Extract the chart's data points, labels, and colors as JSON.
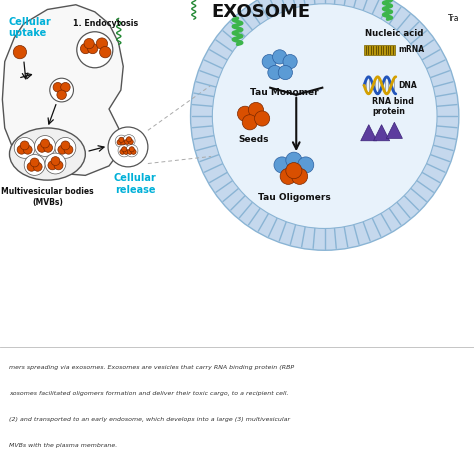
{
  "title": "EXOSOME",
  "background_color": "#ffffff",
  "cell_uptake_label": "Cellular\nuptake",
  "cell_release_label": "Cellular\nrelease",
  "endocytosis_label": "1. Endocytosis",
  "mvb_label": "Multivesicular bodies\n(MVBs)",
  "tau_monomer_label": "Tau Monomer",
  "seeds_label": "Seeds",
  "tau_oligomers_label": "Tau Oligomers",
  "nucleic_acid_label": "Nucleic acid",
  "mrna_label": "mRNA",
  "dna_label": "DNA",
  "rna_binding_label": "RNA bind\nprotein",
  "trans_label": "Tra",
  "caption_lines": [
    "mers spreading via exosomes. Exosomes are vesicles that carry RNA binding protein (RBP",
    "xosomes facilitated oligomers formation and deliver their toxic cargo, to a recipient cell.",
    "(2) and transported to an early endosome, which develops into a large (3) multivesicular",
    "MVBs with the plasma membrane."
  ],
  "orange_color": "#d94f00",
  "blue_color": "#5b9bd5",
  "purple_color": "#5c3d9e",
  "cyan_color": "#00b0d8",
  "green_color": "#3cb54a",
  "exosome_fill_outer": "#c5d8ed",
  "exosome_fill_inner": "#e8f2fb",
  "cell_fill": "#f5f5f5",
  "arrow_color": "#111111"
}
